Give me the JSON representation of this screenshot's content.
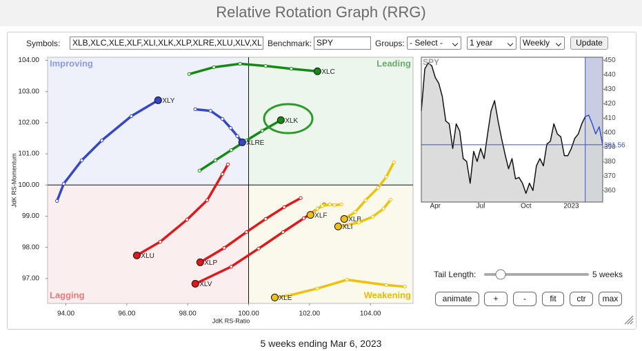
{
  "page_title": "Relative Rotation Graph (RRG)",
  "controls": {
    "symbols_label": "Symbols:",
    "symbols": "XLB,XLC,XLE,XLF,XLI,XLK,XLP,XLRE,XLU,XLV,XL",
    "benchmark_label": "Benchmark:",
    "benchmark": "SPY",
    "groups_label": "Groups:",
    "groups": "- Select -",
    "period": "1 year",
    "interval": "Weekly",
    "update": "Update"
  },
  "chart_data": [
    {
      "type": "rrg",
      "x_label": "JdK RS-Ratio",
      "y_label": "JdK RS-Momentum",
      "quadrant_labels": [
        "Improving",
        "Leading",
        "Lagging",
        "Weakening"
      ],
      "quadrant_colors": [
        "#8c9be0",
        "#6aad6a",
        "#e67a7a",
        "#e6bd00"
      ],
      "reference_lines": {
        "x": 100,
        "y": 100
      },
      "xlim": [
        93.4,
        105.4
      ],
      "ylim": [
        96.2,
        104.1
      ],
      "xticks": [
        {
          "value": 94,
          "label": "94.00"
        },
        {
          "value": 96,
          "label": "96.00"
        },
        {
          "value": 98,
          "label": "98.00"
        },
        {
          "value": 100,
          "label": "100.00"
        },
        {
          "value": 102,
          "label": "102.00"
        },
        {
          "value": 104,
          "label": "104.00"
        }
      ],
      "yticks": [
        {
          "value": 97,
          "label": "97.00"
        },
        {
          "value": 98,
          "label": "98.00"
        },
        {
          "value": 99,
          "label": "99.00"
        },
        {
          "value": 100,
          "label": "100.00"
        },
        {
          "value": 101,
          "label": "101.00"
        },
        {
          "value": 102,
          "label": "102.00"
        },
        {
          "value": 103,
          "label": "103.00"
        },
        {
          "value": 104,
          "label": "104.00"
        }
      ],
      "series": [
        {
          "name": "XLC",
          "color": "#138a13",
          "x": [
            98.05,
            98.86,
            99.72,
            100.56,
            101.4,
            102.26
          ],
          "values": [
            103.56,
            103.78,
            103.89,
            103.82,
            103.73,
            103.65
          ]
        },
        {
          "name": "XLK",
          "color": "#138a13",
          "x": [
            98.39,
            98.91,
            99.43,
            99.93,
            100.45,
            101.06
          ],
          "values": [
            100.46,
            100.79,
            101.12,
            101.43,
            101.74,
            102.08
          ]
        },
        {
          "name": "XLRE",
          "color": "#3347c8",
          "x": [
            98.25,
            98.75,
            99.14,
            99.41,
            99.63,
            99.79
          ],
          "values": [
            102.43,
            102.38,
            102.12,
            101.83,
            101.57,
            101.37
          ]
        },
        {
          "name": "XLY",
          "color": "#3347c8",
          "x": [
            93.71,
            93.93,
            94.52,
            95.18,
            96.15,
            97.03
          ],
          "values": [
            99.49,
            100.04,
            100.79,
            101.43,
            102.21,
            102.72
          ]
        },
        {
          "name": "XLU",
          "color": "#e01818",
          "x": [
            99.32,
            99.14,
            98.64,
            97.98,
            97.1,
            96.33
          ],
          "values": [
            100.66,
            100.35,
            99.51,
            98.89,
            98.18,
            97.74
          ]
        },
        {
          "name": "XLP",
          "color": "#e01818",
          "x": [
            101.71,
            101.17,
            100.56,
            99.93,
            99.2,
            98.41
          ],
          "values": [
            99.58,
            99.29,
            98.91,
            98.49,
            97.98,
            97.52
          ]
        },
        {
          "name": "XLV",
          "color": "#e01818",
          "x": [
            102.48,
            101.81,
            101.13,
            100.33,
            99.43,
            98.25
          ],
          "values": [
            99.38,
            98.93,
            98.49,
            97.96,
            97.38,
            96.83
          ]
        },
        {
          "name": "XLF",
          "color": "#eec20a",
          "x": [
            103.05,
            102.82,
            102.67,
            102.42,
            102.26,
            102.03
          ],
          "values": [
            99.38,
            99.35,
            99.38,
            99.33,
            99.24,
            99.04
          ]
        },
        {
          "name": "XLB",
          "color": "#eec20a",
          "x": [
            104.77,
            104.52,
            104.25,
            103.84,
            103.5,
            103.14
          ],
          "values": [
            100.73,
            100.26,
            99.91,
            99.51,
            99.13,
            98.91
          ]
        },
        {
          "name": "XLI",
          "color": "#eec20a",
          "x": [
            104.66,
            104.43,
            104.07,
            103.62,
            103.28,
            102.94
          ],
          "values": [
            99.53,
            99.24,
            98.98,
            98.8,
            98.73,
            98.67
          ]
        },
        {
          "name": "XLE",
          "color": "#eec20a",
          "x": [
            105.13,
            104.52,
            103.23,
            102.26,
            101.35,
            100.86
          ],
          "values": [
            96.74,
            96.79,
            96.96,
            96.68,
            96.46,
            96.39
          ]
        }
      ]
    },
    {
      "type": "line",
      "title": "SPY",
      "color": "#111111",
      "tail_color": "#3450c8",
      "categories": [
        null,
        null,
        null,
        null,
        "Apr",
        null,
        null,
        null,
        null,
        null,
        null,
        null,
        null,
        null,
        null,
        null,
        null,
        "Jul",
        null,
        null,
        null,
        null,
        null,
        null,
        null,
        null,
        null,
        null,
        null,
        null,
        "Oct",
        null,
        null,
        null,
        null,
        null,
        null,
        null,
        null,
        null,
        null,
        null,
        null,
        "2023",
        null,
        null,
        null,
        null,
        null,
        null,
        null,
        null,
        null
      ],
      "values": [
        415,
        444,
        448,
        446,
        438,
        434,
        425,
        408,
        406,
        389,
        406,
        401,
        382,
        380,
        365,
        387,
        380,
        389,
        382,
        399,
        415,
        422,
        408,
        396,
        385,
        375,
        382,
        368,
        369,
        365,
        358,
        365,
        360,
        377,
        382,
        377,
        392,
        394,
        406,
        399,
        397,
        384,
        384,
        389,
        396,
        399,
        406,
        411,
        412,
        406,
        399,
        404,
        391.56
      ],
      "ylim": [
        352,
        452
      ],
      "yticks": [
        360,
        370,
        380,
        390,
        400,
        410,
        420,
        430,
        440,
        450
      ]
    }
  ],
  "tail_controls": {
    "label": "Tail Length:",
    "tail_length": {
      "value": 5,
      "label": "5 weeks"
    },
    "buttons": [
      "animate",
      "+",
      "-",
      "fit",
      "ctr",
      "max"
    ]
  },
  "footer": "5 weeks ending Mar 6, 2023"
}
